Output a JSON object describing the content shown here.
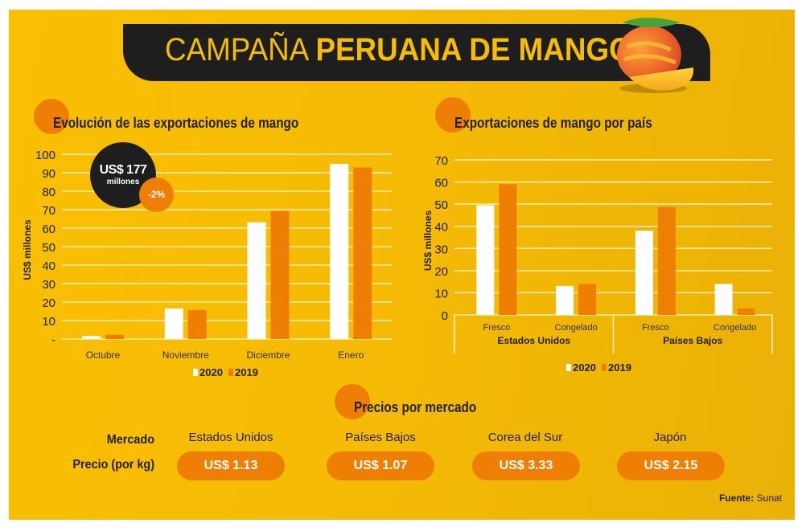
{
  "header": {
    "title_light": "CAMPAÑA",
    "title_bold": "PERUANA DE MANGO",
    "illustration": "mango-image"
  },
  "colors": {
    "background": "#F8BC04",
    "accent_orange": "#EE7F04",
    "dark": "#1E1E1E",
    "series_2020": "#FFFFFF",
    "series_2019": "#EE7F04"
  },
  "highlight": {
    "total": "US$ 177",
    "unit": "millones",
    "change": "-2%"
  },
  "chart_data": [
    {
      "type": "bar",
      "title": "Evolución de las exportaciones de mango",
      "xlabel": "",
      "ylabel": "US$ millones",
      "ylim": [
        0,
        100
      ],
      "yticks": [
        0,
        10,
        20,
        30,
        40,
        50,
        60,
        70,
        80,
        90,
        100
      ],
      "ytick_labels": [
        "-",
        "10",
        "20",
        "30",
        "40",
        "50",
        "60",
        "70",
        "80",
        "90",
        "100"
      ],
      "grid": true,
      "categories": [
        "Octubre",
        "Noviembre",
        "Diciembre",
        "Enero"
      ],
      "series": [
        {
          "name": "2020",
          "color": "#FFFFFF",
          "values": [
            1.6,
            16.5,
            63.2,
            94.8
          ]
        },
        {
          "name": "2019",
          "color": "#EE7F04",
          "values": [
            2.3,
            15.7,
            69.3,
            92.8
          ]
        }
      ],
      "legend": [
        "2020",
        "2019"
      ],
      "legend_position": "bottom"
    },
    {
      "type": "bar",
      "title": "Exportaciones de mango por país",
      "xlabel": "",
      "ylabel": "US$ millones",
      "ylim": [
        0,
        70
      ],
      "yticks": [
        0,
        10,
        20,
        30,
        40,
        50,
        60,
        70
      ],
      "ytick_labels": [
        "0",
        "10",
        "20",
        "30",
        "40",
        "50",
        "60",
        "70"
      ],
      "grid": true,
      "categories": [
        "Fresco",
        "Congelado",
        "Fresco",
        "Congelado"
      ],
      "groups": [
        {
          "name": "Estados Unidos",
          "categories": [
            "Fresco",
            "Congelado"
          ]
        },
        {
          "name": "Países Bajos",
          "categories": [
            "Fresco",
            "Congelado"
          ]
        }
      ],
      "series": [
        {
          "name": "2020",
          "color": "#FFFFFF",
          "values": [
            49.5,
            13.1,
            38.0,
            14.0
          ]
        },
        {
          "name": "2019",
          "color": "#EE7F04",
          "values": [
            59.0,
            14.0,
            48.7,
            2.9
          ]
        }
      ],
      "legend": [
        "2020",
        "2019"
      ],
      "legend_position": "bottom"
    }
  ],
  "prices": {
    "title": "Precios por mercado",
    "market_label": "Mercado",
    "price_label": "Precio (por kg)",
    "markets": [
      {
        "name": "Estados Unidos",
        "price": "US$ 1.13"
      },
      {
        "name": "Países Bajos",
        "price": "US$ 1.07"
      },
      {
        "name": "Corea del Sur",
        "price": "US$ 3.33"
      },
      {
        "name": "Japón",
        "price": "US$ 2.15"
      }
    ]
  },
  "source": {
    "label": "Fuente:",
    "value": "Sunat"
  }
}
